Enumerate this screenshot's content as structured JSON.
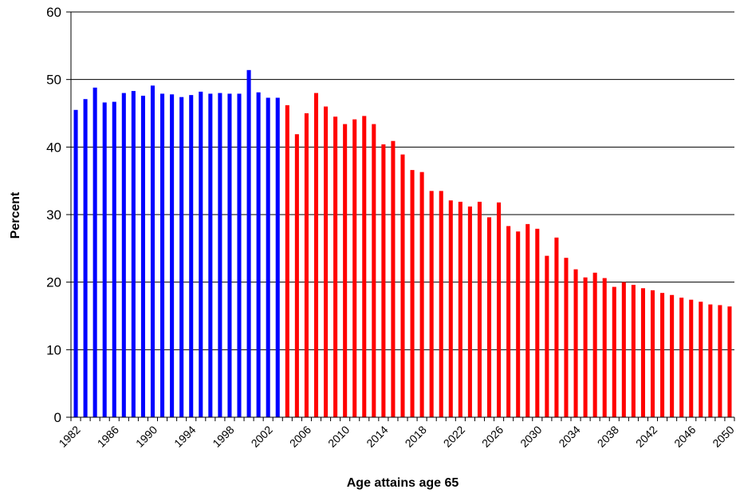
{
  "chart_data": {
    "type": "bar",
    "title": "",
    "xlabel": "Age attains age 65",
    "ylabel": "Percent",
    "ylim": [
      0,
      60
    ],
    "yticks": [
      0,
      10,
      20,
      30,
      40,
      50,
      60
    ],
    "xtick_labels": [
      "1982",
      "1986",
      "1990",
      "1994",
      "1998",
      "2002",
      "2006",
      "2010",
      "2014",
      "2018",
      "2022",
      "2026",
      "2030",
      "2034",
      "2038",
      "2042",
      "2046",
      "2050"
    ],
    "grid": true,
    "legend": "none",
    "colors": {
      "historical": "#0000ff",
      "projected": "#ff0000",
      "grid": "#000000",
      "axis": "#000000"
    },
    "categories": [
      1982,
      1983,
      1984,
      1985,
      1986,
      1987,
      1988,
      1989,
      1990,
      1991,
      1992,
      1993,
      1994,
      1995,
      1996,
      1997,
      1998,
      1999,
      2000,
      2001,
      2002,
      2003,
      2004,
      2005,
      2006,
      2007,
      2008,
      2009,
      2010,
      2011,
      2012,
      2013,
      2014,
      2015,
      2016,
      2017,
      2018,
      2019,
      2020,
      2021,
      2022,
      2023,
      2024,
      2025,
      2026,
      2027,
      2028,
      2029,
      2030,
      2031,
      2032,
      2033,
      2034,
      2035,
      2036,
      2037,
      2038,
      2039,
      2040,
      2041,
      2042,
      2043,
      2044,
      2045,
      2046,
      2047,
      2048,
      2049,
      2050
    ],
    "series": [
      {
        "color_key": "historical",
        "values": [
          45.5,
          47.1,
          48.8,
          46.6,
          46.7,
          48.0,
          48.3,
          47.6,
          49.1,
          47.9,
          47.8,
          47.4,
          47.7,
          48.2,
          47.9,
          48.0,
          47.9,
          47.9,
          51.4,
          48.1,
          47.3,
          47.3,
          null,
          null,
          null,
          null,
          null,
          null,
          null,
          null,
          null,
          null,
          null,
          null,
          null,
          null,
          null,
          null,
          null,
          null,
          null,
          null,
          null,
          null,
          null,
          null,
          null,
          null,
          null,
          null,
          null,
          null,
          null,
          null,
          null,
          null,
          null,
          null,
          null,
          null,
          null,
          null,
          null,
          null,
          null,
          null,
          null,
          null,
          null
        ]
      },
      {
        "color_key": "projected",
        "values": [
          null,
          null,
          null,
          null,
          null,
          null,
          null,
          null,
          null,
          null,
          null,
          null,
          null,
          null,
          null,
          null,
          null,
          null,
          null,
          null,
          null,
          null,
          46.2,
          41.9,
          45.0,
          48.0,
          46.0,
          44.5,
          43.4,
          44.1,
          44.6,
          43.4,
          40.4,
          40.9,
          38.9,
          36.6,
          36.3,
          33.5,
          33.5,
          32.1,
          31.9,
          31.2,
          31.9,
          29.6,
          31.8,
          28.3,
          27.5,
          28.6,
          27.9,
          23.9,
          26.6,
          23.6,
          21.9,
          20.7,
          21.4,
          20.6,
          19.3,
          20.0,
          19.6,
          19.1,
          18.8,
          18.4,
          18.1,
          17.7,
          17.4,
          17.1,
          16.7,
          16.6,
          16.4
        ]
      }
    ]
  }
}
